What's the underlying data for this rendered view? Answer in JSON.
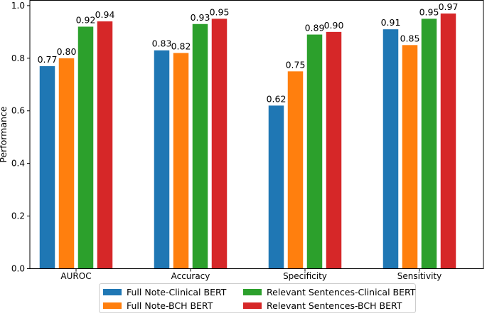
{
  "chart_data": {
    "type": "bar",
    "title": "",
    "xlabel": "",
    "ylabel": "Performance",
    "ylim": [
      0,
      1.0
    ],
    "yticks": [
      "0.0",
      "0.2",
      "0.4",
      "0.6",
      "0.8",
      "1.0"
    ],
    "categories": [
      "AUROC",
      "Accuracy",
      "Specificity",
      "Sensitivity"
    ],
    "series": [
      {
        "name": "Full Note-Clinical BERT",
        "color": "#1f77b4",
        "values": [
          0.77,
          0.83,
          0.62,
          0.91
        ],
        "labels": [
          "0.77",
          "0.83",
          "0.62",
          "0.91"
        ]
      },
      {
        "name": "Full Note-BCH BERT",
        "color": "#ff7f0e",
        "values": [
          0.8,
          0.82,
          0.75,
          0.85
        ],
        "labels": [
          "0.80",
          "0.82",
          "0.75",
          "0.85"
        ]
      },
      {
        "name": "Relevant Sentences-Clinical BERT",
        "color": "#2ca02c",
        "values": [
          0.92,
          0.93,
          0.89,
          0.95
        ],
        "labels": [
          "0.92",
          "0.93",
          "0.89",
          "0.95"
        ]
      },
      {
        "name": "Relevant Sentences-BCH BERT",
        "color": "#d62728",
        "values": [
          0.94,
          0.95,
          0.9,
          0.97
        ],
        "labels": [
          "0.94",
          "0.95",
          "0.90",
          "0.97"
        ]
      }
    ],
    "legend_position": "bottom-center",
    "grid": false
  }
}
